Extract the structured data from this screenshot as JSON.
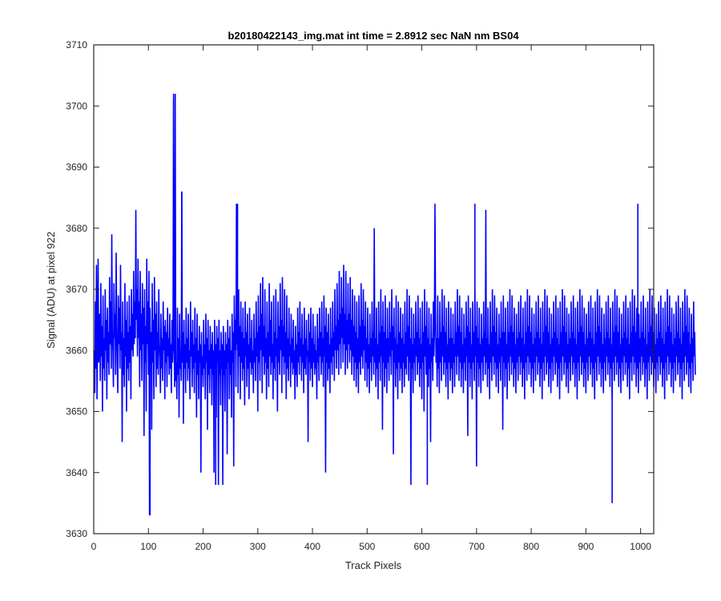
{
  "chart_data": {
    "type": "line",
    "title": "b20180422143_img.mat int time = 2.8912 sec  NaN nm BS04",
    "xlabel": "Track Pixels",
    "ylabel": "Signal (ADU) at pixel 922",
    "xlim": [
      0,
      1024
    ],
    "ylim": [
      3630,
      3710
    ],
    "xticks": [
      "0",
      "100",
      "200",
      "300",
      "400",
      "500",
      "600",
      "700",
      "800",
      "900",
      "1000"
    ],
    "yticks": [
      "3630",
      "3640",
      "3650",
      "3660",
      "3670",
      "3680",
      "3690",
      "3700",
      "3710"
    ],
    "grid": false,
    "line_color": "#0000ff",
    "series": [
      {
        "x_start": 1,
        "x_step": 1,
        "values": [
          3660,
          3653,
          3668,
          3657,
          3674,
          3652,
          3663,
          3675,
          3658,
          3661,
          3666,
          3655,
          3671,
          3659,
          3664,
          3650,
          3669,
          3657,
          3662,
          3655,
          3670,
          3660,
          3665,
          3652,
          3667,
          3658,
          3663,
          3656,
          3672,
          3661,
          3668,
          3657,
          3679,
          3663,
          3660,
          3654,
          3671,
          3662,
          3666,
          3656,
          3676,
          3664,
          3658,
          3653,
          3669,
          3661,
          3667,
          3657,
          3674,
          3660,
          3663,
          3645,
          3668,
          3656,
          3662,
          3654,
          3671,
          3659,
          3665,
          3650,
          3668,
          3657,
          3663,
          3655,
          3669,
          3658,
          3664,
          3652,
          3670,
          3660,
          3666,
          3659,
          3673,
          3661,
          3668,
          3662,
          3683,
          3665,
          3670,
          3659,
          3675,
          3662,
          3668,
          3654,
          3673,
          3660,
          3666,
          3655,
          3671,
          3661,
          3667,
          3646,
          3670,
          3658,
          3664,
          3650,
          3675,
          3661,
          3668,
          3656,
          3673,
          3633,
          3667,
          3658,
          3663,
          3647,
          3671,
          3658,
          3665,
          3652,
          3672,
          3660,
          3666,
          3654,
          3668,
          3657,
          3663,
          3656,
          3670,
          3661,
          3659,
          3653,
          3666,
          3657,
          3662,
          3655,
          3668,
          3660,
          3664,
          3652,
          3665,
          3658,
          3663,
          3654,
          3667,
          3659,
          3662,
          3656,
          3666,
          3657,
          3661,
          3653,
          3665,
          3658,
          3663,
          3701,
          3660,
          3654,
          3702,
          3655,
          3658,
          3652,
          3667,
          3656,
          3662,
          3649,
          3666,
          3657,
          3660,
          3655,
          3686,
          3658,
          3663,
          3648,
          3665,
          3657,
          3661,
          3653,
          3667,
          3658,
          3662,
          3655,
          3666,
          3657,
          3660,
          3652,
          3668,
          3659,
          3663,
          3654,
          3665,
          3657,
          3661,
          3653,
          3667,
          3658,
          3662,
          3649,
          3666,
          3656,
          3660,
          3652,
          3664,
          3658,
          3661,
          3640,
          3663,
          3656,
          3659,
          3654,
          3665,
          3657,
          3661,
          3652,
          3666,
          3658,
          3662,
          3647,
          3665,
          3656,
          3660,
          3653,
          3664,
          3657,
          3661,
          3651,
          3663,
          3656,
          3660,
          3640,
          3665,
          3657,
          3661,
          3649,
          3664,
          3658,
          3662,
          3638,
          3665,
          3656,
          3660,
          3651,
          3663,
          3657,
          3661,
          3638,
          3664,
          3656,
          3660,
          3650,
          3663,
          3657,
          3661,
          3643,
          3665,
          3658,
          3662,
          3652,
          3664,
          3656,
          3660,
          3649,
          3666,
          3658,
          3663,
          3641,
          3669,
          3660,
          3665,
          3654,
          3684,
          3661,
          3666,
          3653,
          3670,
          3659,
          3664,
          3652,
          3668,
          3658,
          3663,
          3655,
          3667,
          3657,
          3662,
          3651,
          3668,
          3659,
          3663,
          3654,
          3666,
          3657,
          3661,
          3652,
          3667,
          3658,
          3662,
          3656,
          3665,
          3657,
          3660,
          3653,
          3666,
          3658,
          3662,
          3655,
          3668,
          3659,
          3663,
          3650,
          3669,
          3658,
          3664,
          3655,
          3671,
          3660,
          3666,
          3653,
          3672,
          3659,
          3664,
          3656,
          3670,
          3658,
          3662,
          3652,
          3668,
          3657,
          3663,
          3654,
          3671,
          3659,
          3665,
          3656,
          3668,
          3658,
          3661,
          3652,
          3669,
          3657,
          3663,
          3655,
          3670,
          3659,
          3662,
          3650,
          3668,
          3658,
          3664,
          3656,
          3671,
          3660,
          3665,
          3653,
          3672,
          3659,
          3664,
          3656,
          3670,
          3658,
          3663,
          3652,
          3669,
          3657,
          3662,
          3655,
          3667,
          3659,
          3661,
          3654,
          3666,
          3658,
          3662,
          3656,
          3665,
          3657,
          3660,
          3652,
          3664,
          3656,
          3661,
          3654,
          3667,
          3658,
          3663,
          3656,
          3668,
          3659,
          3662,
          3655,
          3666,
          3658,
          3661,
          3653,
          3667,
          3657,
          3662,
          3656,
          3665,
          3659,
          3660,
          3645,
          3666,
          3658,
          3663,
          3655,
          3667,
          3657,
          3662,
          3654,
          3666,
          3658,
          3661,
          3656,
          3664,
          3657,
          3660,
          3652,
          3666,
          3658,
          3662,
          3655,
          3667,
          3659,
          3663,
          3656,
          3668,
          3658,
          3662,
          3654,
          3669,
          3659,
          3664,
          3640,
          3667,
          3658,
          3663,
          3655,
          3666,
          3657,
          3661,
          3653,
          3667,
          3658,
          3662,
          3656,
          3668,
          3659,
          3663,
          3655,
          3670,
          3660,
          3664,
          3657,
          3671,
          3660,
          3665,
          3656,
          3673,
          3661,
          3666,
          3657,
          3672,
          3662,
          3667,
          3658,
          3674,
          3661,
          3666,
          3656,
          3673,
          3660,
          3665,
          3657,
          3671,
          3661,
          3666,
          3658,
          3672,
          3660,
          3665,
          3656,
          3670,
          3659,
          3664,
          3655,
          3669,
          3658,
          3663,
          3654,
          3668,
          3657,
          3662,
          3653,
          3669,
          3658,
          3664,
          3656,
          3671,
          3659,
          3665,
          3657,
          3670,
          3660,
          3664,
          3655,
          3668,
          3658,
          3662,
          3654,
          3667,
          3657,
          3661,
          3653,
          3666,
          3658,
          3662,
          3655,
          3668,
          3659,
          3663,
          3656,
          3680,
          3658,
          3662,
          3654,
          3667,
          3657,
          3661,
          3652,
          3668,
          3658,
          3663,
          3655,
          3670,
          3659,
          3664,
          3647,
          3668,
          3658,
          3663,
          3654,
          3669,
          3657,
          3662,
          3653,
          3667,
          3658,
          3662,
          3655,
          3668,
          3659,
          3663,
          3656,
          3670,
          3660,
          3664,
          3643,
          3667,
          3658,
          3662,
          3654,
          3669,
          3657,
          3661,
          3652,
          3668,
          3658,
          3663,
          3655,
          3667,
          3657,
          3662,
          3653,
          3666,
          3658,
          3661,
          3654,
          3668,
          3657,
          3663,
          3656,
          3670,
          3659,
          3664,
          3655,
          3669,
          3658,
          3662,
          3638,
          3667,
          3657,
          3661,
          3653,
          3666,
          3658,
          3662,
          3655,
          3668,
          3659,
          3663,
          3656,
          3669,
          3658,
          3662,
          3654,
          3667,
          3657,
          3661,
          3652,
          3668,
          3658,
          3663,
          3650,
          3670,
          3659,
          3664,
          3656,
          3668,
          3658,
          3662,
          3654,
          3667,
          3657,
          3661,
          3645,
          3666,
          3658,
          3662,
          3655,
          3668,
          3659,
          3663,
          3684,
          3667,
          3658,
          3662,
          3654,
          3669,
          3657,
          3662,
          3653,
          3668,
          3658,
          3663,
          3655,
          3670,
          3659,
          3664,
          3656,
          3669,
          3658,
          3663,
          3654,
          3667,
          3657,
          3661,
          3652,
          3668,
          3658,
          3662,
          3655,
          3667,
          3657,
          3662,
          3653,
          3666,
          3658,
          3661,
          3654,
          3668,
          3659,
          3663,
          3656,
          3670,
          3659,
          3664,
          3655,
          3669,
          3658,
          3663,
          3654,
          3667,
          3657,
          3661,
          3653,
          3666,
          3658,
          3662,
          3655,
          3668,
          3659,
          3664,
          3646,
          3669,
          3658,
          3663,
          3654,
          3667,
          3657,
          3661,
          3652,
          3668,
          3658,
          3663,
          3655,
          3670,
          3659,
          3664,
          3641,
          3668,
          3658,
          3662,
          3654,
          3667,
          3657,
          3661,
          3653,
          3666,
          3658,
          3662,
          3655,
          3668,
          3659,
          3663,
          3656,
          3683,
          3658,
          3662,
          3654,
          3667,
          3657,
          3661,
          3652,
          3668,
          3658,
          3663,
          3655,
          3670,
          3659,
          3664,
          3656,
          3669,
          3658,
          3663,
          3654,
          3667,
          3657,
          3661,
          3653,
          3666,
          3658,
          3662,
          3655,
          3668,
          3659,
          3663,
          3647,
          3669,
          3658,
          3663,
          3654,
          3667,
          3657,
          3661,
          3652,
          3668,
          3658,
          3663,
          3655,
          3670,
          3659,
          3664,
          3656,
          3669,
          3658,
          3663,
          3654,
          3667,
          3657,
          3661,
          3653,
          3666,
          3658,
          3662,
          3655,
          3668,
          3659,
          3663,
          3656,
          3669,
          3658,
          3662,
          3654,
          3667,
          3657,
          3661,
          3652,
          3668,
          3658,
          3663,
          3655,
          3670,
          3659,
          3664,
          3656,
          3669,
          3658,
          3663,
          3654,
          3667,
          3657,
          3661,
          3653,
          3666,
          3658,
          3662,
          3655,
          3668,
          3659,
          3663,
          3656,
          3669,
          3658,
          3662,
          3654,
          3667,
          3657,
          3661,
          3652,
          3668,
          3658,
          3663,
          3655,
          3670,
          3659,
          3664,
          3656,
          3669,
          3658,
          3663,
          3654,
          3667,
          3657,
          3661,
          3653,
          3666,
          3658,
          3662,
          3655,
          3668,
          3659,
          3663,
          3656,
          3669,
          3658,
          3662,
          3654,
          3667,
          3657,
          3661,
          3652,
          3668,
          3658,
          3663,
          3655,
          3670,
          3659,
          3664,
          3656,
          3669,
          3658,
          3663,
          3654,
          3667,
          3657,
          3661,
          3653,
          3666,
          3658,
          3662,
          3655,
          3668,
          3659,
          3663,
          3656,
          3669,
          3658,
          3662,
          3654,
          3667,
          3657,
          3661,
          3652,
          3668,
          3658,
          3663,
          3655,
          3670,
          3659,
          3664,
          3656,
          3669,
          3658,
          3663,
          3654,
          3667,
          3657,
          3661,
          3653,
          3666,
          3658,
          3662,
          3655,
          3668,
          3659,
          3663,
          3656,
          3669,
          3658,
          3662,
          3654,
          3667,
          3657,
          3661,
          3652,
          3668,
          3658,
          3663,
          3655,
          3670,
          3659,
          3664,
          3656,
          3669,
          3658,
          3663,
          3654,
          3667,
          3657,
          3661,
          3653,
          3666,
          3658,
          3662,
          3655,
          3668,
          3659,
          3663,
          3656,
          3669,
          3658,
          3662,
          3654,
          3667,
          3657,
          3661,
          3652,
          3668,
          3658,
          3663,
          3655,
          3670,
          3659,
          3664,
          3656,
          3669,
          3658,
          3663,
          3654,
          3667,
          3657,
          3661,
          3653,
          3666,
          3658,
          3662,
          3655,
          3668,
          3659,
          3663,
          3656,
          3669,
          3658,
          3662,
          3654,
          3667,
          3657,
          3661,
          3652,
          3668,
          3658,
          3663,
          3655,
          3670,
          3659,
          3664,
          3656,
          3669,
          3658,
          3663,
          3654,
          3667,
          3657,
          3661,
          3653,
          3666,
          3658,
          3662,
          3655,
          3668,
          3659,
          3663,
          3656,
          3669,
          3658,
          3662,
          3654,
          3667,
          3657,
          3661,
          3652,
          3668,
          3658,
          3663,
          3655,
          3670,
          3659,
          3664,
          3656,
          3669,
          3658,
          3663,
          3654,
          3667,
          3657,
          3661,
          3653,
          3666,
          3658,
          3662,
          3655,
          3668,
          3659,
          3663,
          3656,
          3669,
          3658,
          3662,
          3654,
          3667,
          3657,
          3661,
          3652,
          3668,
          3658,
          3663,
          3655,
          3670,
          3659,
          3664,
          3656,
          3669,
          3658,
          3663,
          3654,
          3667,
          3657,
          3661,
          3653,
          3666,
          3658,
          3662,
          3655,
          3668,
          3659,
          3663,
          3656,
          3669,
          3658,
          3662,
          3654,
          3667,
          3657,
          3661,
          3652,
          3668,
          3658,
          3663,
          3655,
          3670,
          3659,
          3664,
          3656,
          3669,
          3658,
          3663,
          3654,
          3667,
          3657,
          3661,
          3653,
          3666,
          3658,
          3662,
          3655,
          3668,
          3659,
          3663,
          3656
        ]
      }
    ],
    "annotations": [
      {
        "x": 103,
        "y": 3633
      },
      {
        "x": 146,
        "y": 3702
      },
      {
        "x": 161,
        "y": 3686
      },
      {
        "x": 223,
        "y": 3638
      },
      {
        "x": 263,
        "y": 3684
      },
      {
        "x": 610,
        "y": 3638
      },
      {
        "x": 697,
        "y": 3684
      },
      {
        "x": 948,
        "y": 3635
      },
      {
        "x": 995,
        "y": 3684
      }
    ]
  }
}
